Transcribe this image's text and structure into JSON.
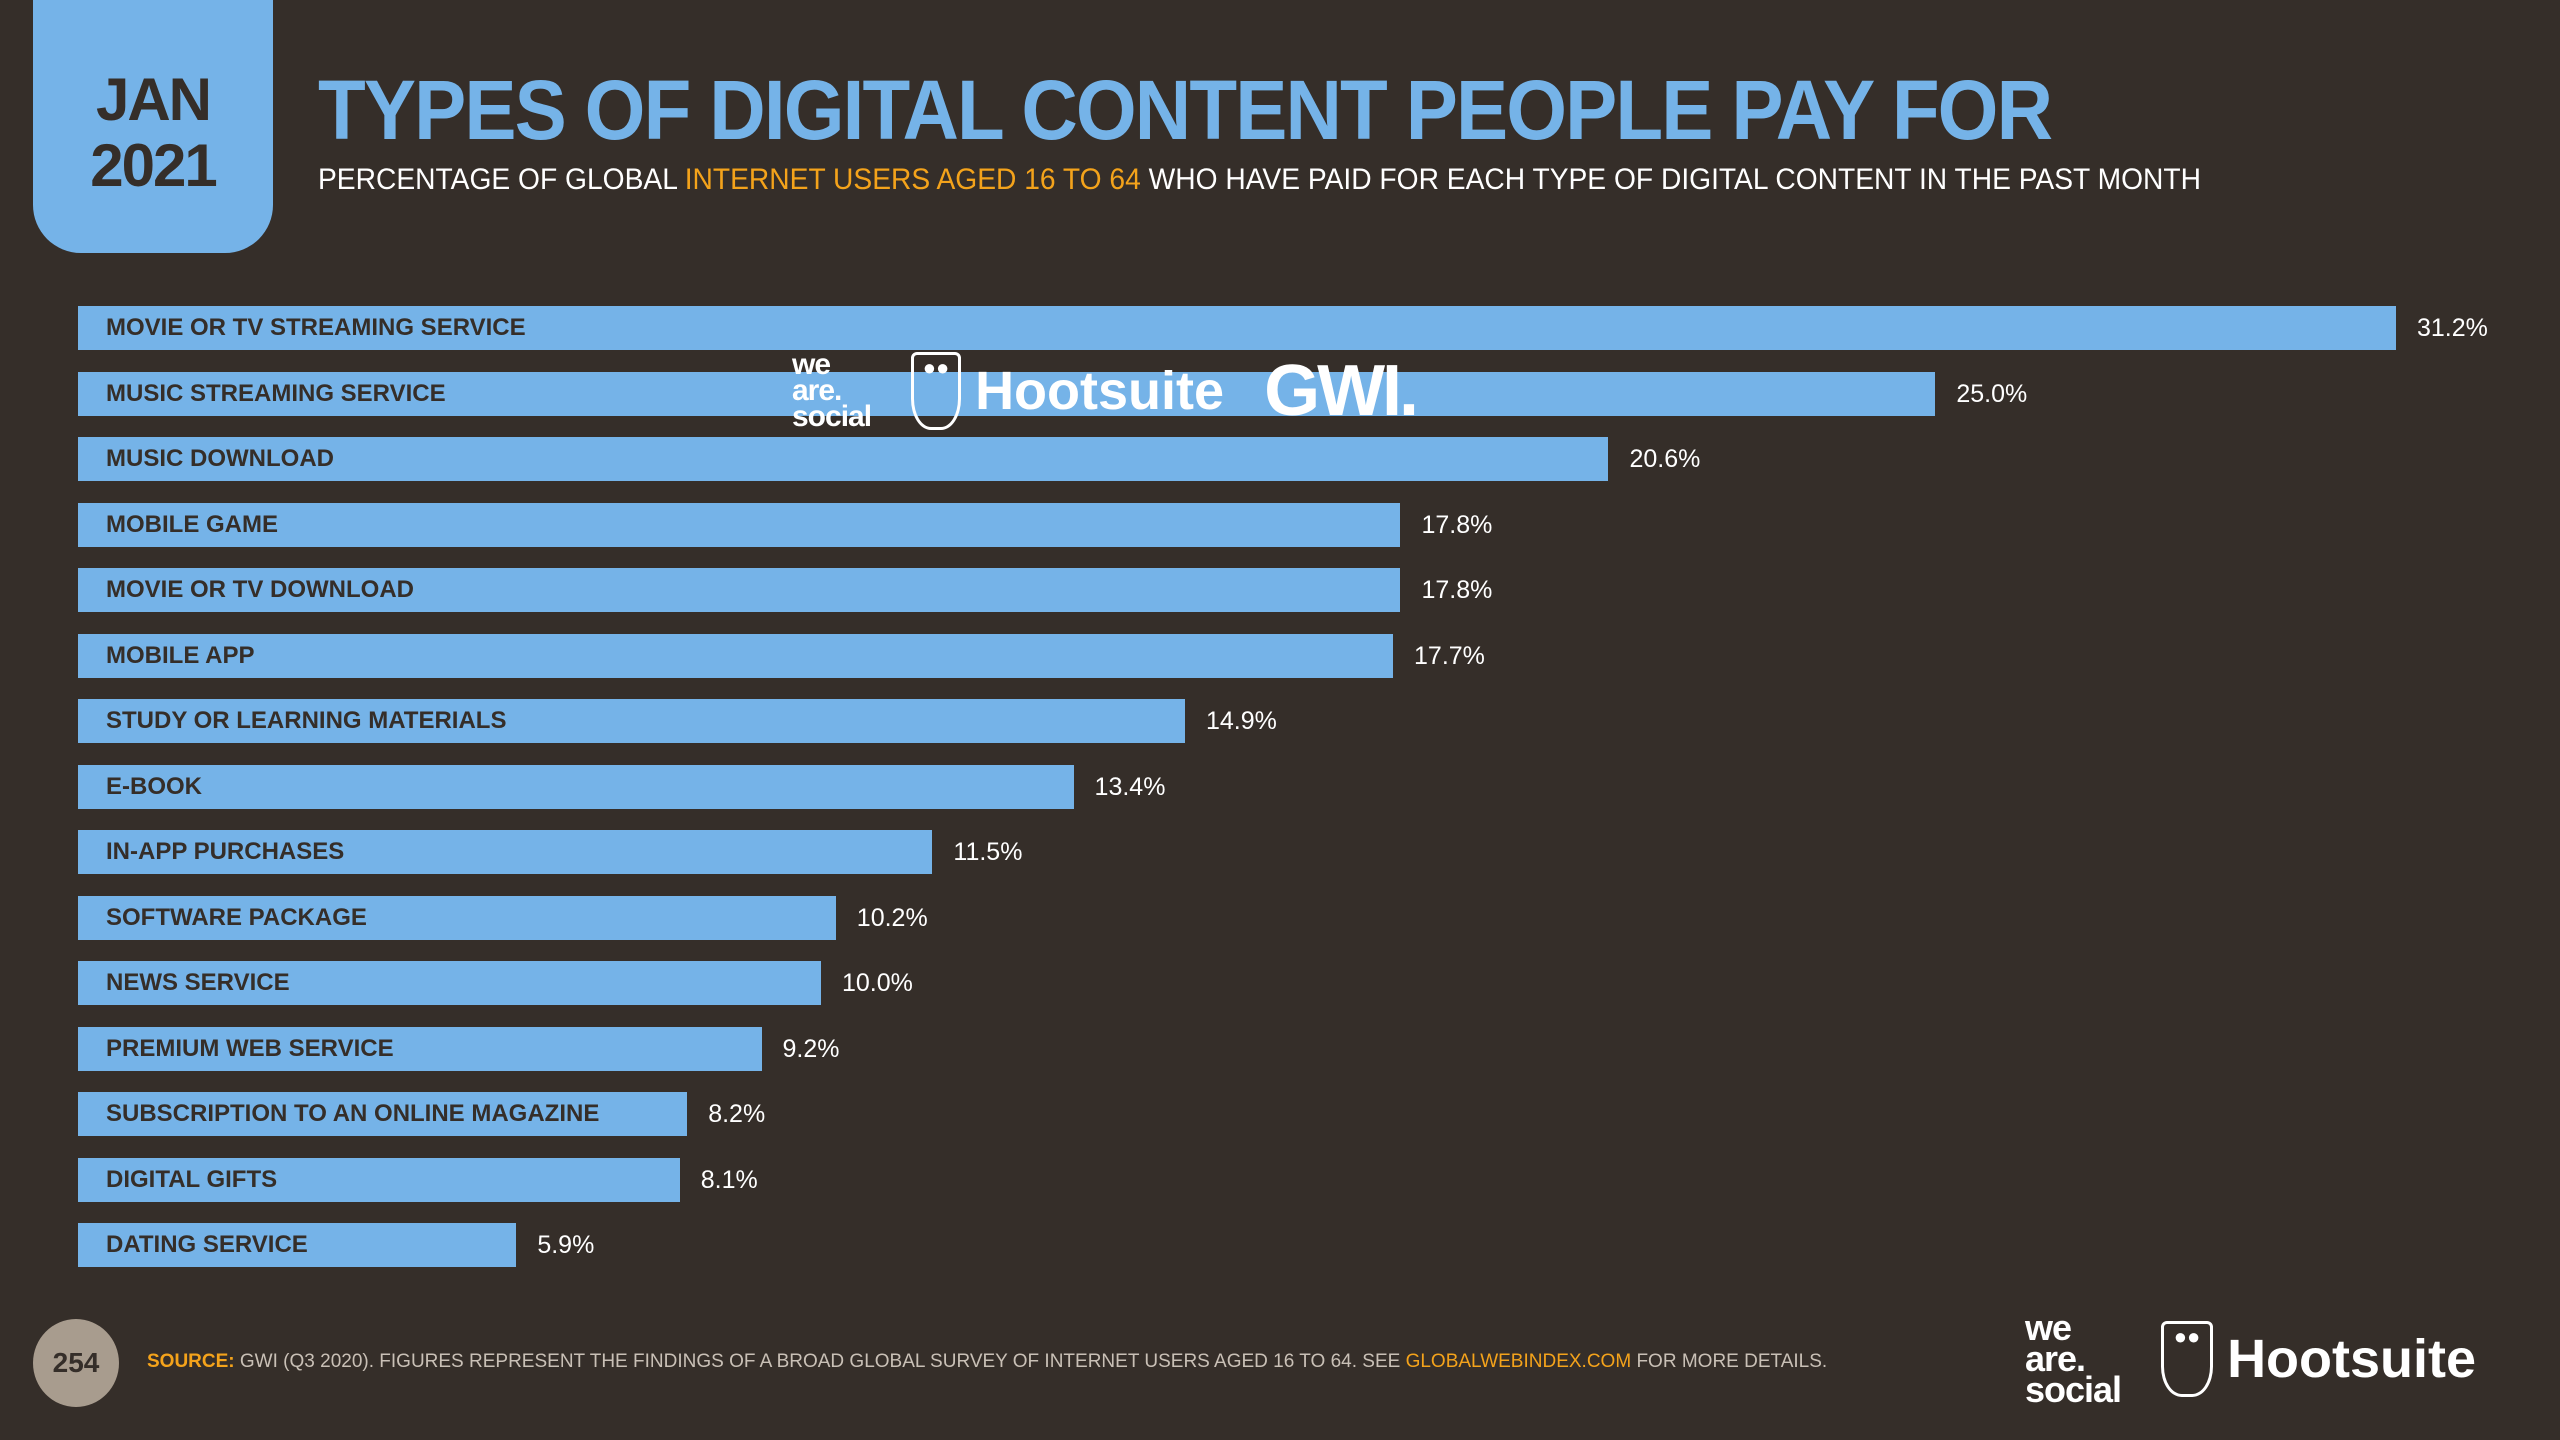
{
  "date": {
    "month": "JAN",
    "year": "2021"
  },
  "title": "TYPES OF DIGITAL CONTENT PEOPLE PAY FOR",
  "subtitle": {
    "pre": "PERCENTAGE OF GLOBAL ",
    "highlight": "INTERNET USERS AGED 16 TO 64",
    "post": " WHO HAVE PAID FOR EACH TYPE OF DIGITAL CONTENT IN THE PAST MONTH"
  },
  "logos": {
    "we_are_social": [
      "we",
      "are.",
      "social"
    ],
    "hootsuite": "Hootsuite",
    "gwi": "GWI."
  },
  "colors": {
    "background": "#352e29",
    "bar": "#75b3e8",
    "accent": "#f4a31b"
  },
  "chart_data": {
    "type": "bar",
    "orientation": "horizontal",
    "title": "TYPES OF DIGITAL CONTENT PEOPLE PAY FOR",
    "categories": [
      "MOVIE OR TV STREAMING SERVICE",
      "MUSIC STREAMING SERVICE",
      "MUSIC DOWNLOAD",
      "MOBILE GAME",
      "MOVIE OR TV DOWNLOAD",
      "MOBILE APP",
      "STUDY OR LEARNING MATERIALS",
      "E-BOOK",
      "IN-APP PURCHASES",
      "SOFTWARE PACKAGE",
      "NEWS SERVICE",
      "PREMIUM WEB SERVICE",
      "SUBSCRIPTION TO AN ONLINE MAGAZINE",
      "DIGITAL GIFTS",
      "DATING SERVICE"
    ],
    "values": [
      31.2,
      25.0,
      20.6,
      17.8,
      17.8,
      17.7,
      14.9,
      13.4,
      11.5,
      10.2,
      10.0,
      9.2,
      8.2,
      8.1,
      5.9
    ],
    "value_labels": [
      "31.2%",
      "25.0%",
      "20.6%",
      "17.8%",
      "17.8%",
      "17.7%",
      "14.9%",
      "13.4%",
      "11.5%",
      "10.2%",
      "10.0%",
      "9.2%",
      "8.2%",
      "8.1%",
      "5.9%"
    ],
    "unit": "%"
  },
  "footer": {
    "page": "254",
    "source_label": "SOURCE:",
    "source_text": " GWI (Q3 2020). FIGURES REPRESENT THE FINDINGS OF A BROAD GLOBAL SURVEY OF INTERNET USERS AGED 16 TO 64. SEE ",
    "link": "GLOBALWEBINDEX.COM",
    "suffix": " FOR MORE DETAILS."
  }
}
